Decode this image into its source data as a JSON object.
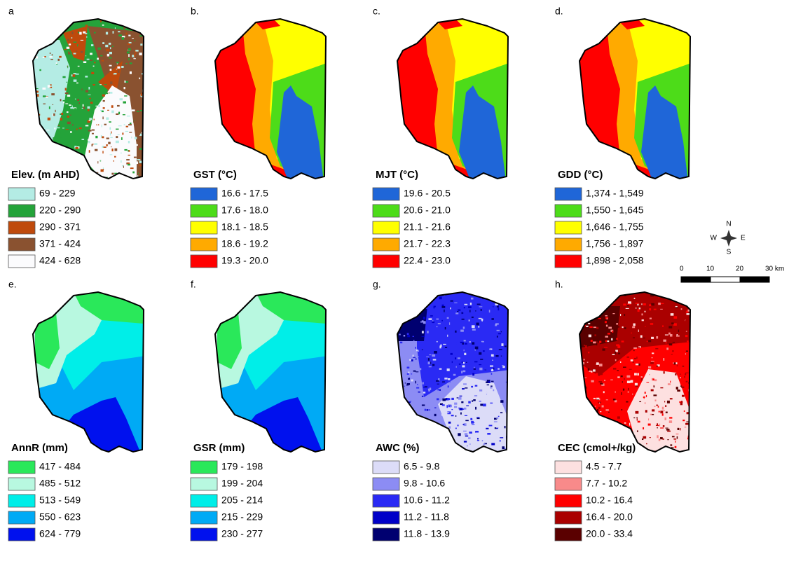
{
  "panels": [
    {
      "label": "a",
      "title": "Elev. (m AHD)",
      "legend": [
        {
          "label": "69 - 229",
          "color": "#b4ece4"
        },
        {
          "label": "220 - 290",
          "color": "#24a33a"
        },
        {
          "label": "290 - 371",
          "color": "#bf4a0c"
        },
        {
          "label": "371 - 424",
          "color": "#8a5230"
        },
        {
          "label": "424 - 628",
          "color": "#fbfbfd"
        }
      ]
    },
    {
      "label": "b.",
      "title": "GST (°C)",
      "legend": [
        {
          "label": "16.6 - 17.5",
          "color": "#1f66d8"
        },
        {
          "label": "17.6 - 18.0",
          "color": "#4ddc19"
        },
        {
          "label": "18.1 - 18.5",
          "color": "#ffff00"
        },
        {
          "label": "18.6 - 19.2",
          "color": "#ffaa00"
        },
        {
          "label": "19.3 - 20.0",
          "color": "#ff0000"
        }
      ]
    },
    {
      "label": "c.",
      "title": "MJT (°C)",
      "legend": [
        {
          "label": "19.6 - 20.5",
          "color": "#1f66d8"
        },
        {
          "label": "20.6 - 21.0",
          "color": "#4ddc19"
        },
        {
          "label": "21.1 - 21.6",
          "color": "#ffff00"
        },
        {
          "label": "21.7 - 22.3",
          "color": "#ffaa00"
        },
        {
          "label": "22.4 - 23.0",
          "color": "#ff0000"
        }
      ]
    },
    {
      "label": "d.",
      "title": "GDD (°C)",
      "legend": [
        {
          "label": "1,374 - 1,549",
          "color": "#1f66d8"
        },
        {
          "label": "1,550 - 1,645",
          "color": "#4ddc19"
        },
        {
          "label": "1,646 - 1,755",
          "color": "#ffff00"
        },
        {
          "label": "1,756 - 1,897",
          "color": "#ffaa00"
        },
        {
          "label": "1,898 - 2,058",
          "color": "#ff0000"
        }
      ]
    },
    {
      "label": "e.",
      "title": "AnnR (mm)",
      "legend": [
        {
          "label": "417 - 484",
          "color": "#2ae85a"
        },
        {
          "label": "485 - 512",
          "color": "#b8f8e0"
        },
        {
          "label": "513 - 549",
          "color": "#00eee8"
        },
        {
          "label": "550 - 623",
          "color": "#00aaf5"
        },
        {
          "label": "624 - 779",
          "color": "#0011ee"
        }
      ]
    },
    {
      "label": "f.",
      "title": "GSR (mm)",
      "legend": [
        {
          "label": "179 - 198",
          "color": "#2ae85a"
        },
        {
          "label": "199 - 204",
          "color": "#b8f8e0"
        },
        {
          "label": "205 - 214",
          "color": "#00eee8"
        },
        {
          "label": "215 - 229",
          "color": "#00aaf5"
        },
        {
          "label": "230 - 277",
          "color": "#0011ee"
        }
      ]
    },
    {
      "label": "g.",
      "title": "AWC (%)",
      "legend": [
        {
          "label": "6.5 - 9.8",
          "color": "#dcdcf8"
        },
        {
          "label": "9.8 - 10.6",
          "color": "#8c8cf4"
        },
        {
          "label": "10.6 - 11.2",
          "color": "#2a2af4"
        },
        {
          "label": "11.2 - 11.8",
          "color": "#0000c8"
        },
        {
          "label": "11.8 - 13.9",
          "color": "#000070"
        }
      ]
    },
    {
      "label": "h.",
      "title": "CEC (cmol+/kg)",
      "legend": [
        {
          "label": "4.5 - 7.7",
          "color": "#fde0e0"
        },
        {
          "label": "7.7 - 10.2",
          "color": "#f88a8a"
        },
        {
          "label": "10.2 - 16.4",
          "color": "#ff0000"
        },
        {
          "label": "16.4 - 20.0",
          "color": "#aa0000"
        },
        {
          "label": "20.0 - 33.4",
          "color": "#5a0000"
        }
      ]
    }
  ],
  "scale_bar": {
    "north": "N",
    "south": "S",
    "east": "E",
    "west": "W",
    "ticks": [
      "0",
      "10",
      "20",
      "30 km"
    ]
  }
}
